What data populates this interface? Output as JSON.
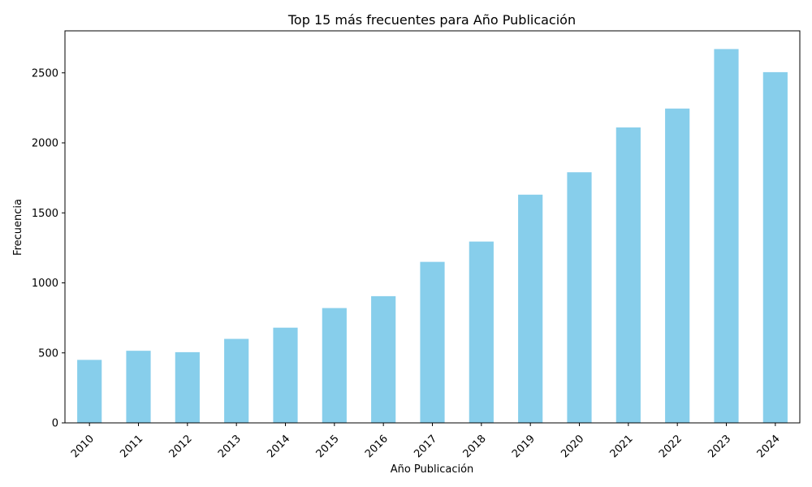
{
  "chart_data": {
    "type": "bar",
    "title": "Top 15 más frecuentes para Año Publicación",
    "xlabel": "Año Publicación",
    "ylabel": "Frecuencia",
    "categories": [
      "2010",
      "2011",
      "2012",
      "2013",
      "2014",
      "2015",
      "2016",
      "2017",
      "2018",
      "2019",
      "2020",
      "2021",
      "2022",
      "2023",
      "2024"
    ],
    "values": [
      450,
      515,
      505,
      600,
      680,
      820,
      905,
      1150,
      1295,
      1630,
      1790,
      2110,
      2245,
      2670,
      2505
    ],
    "yticks": [
      0,
      500,
      1000,
      1500,
      2000,
      2500
    ],
    "ylim": [
      0,
      2800
    ],
    "bar_color": "#87ceeb",
    "grid": false
  }
}
